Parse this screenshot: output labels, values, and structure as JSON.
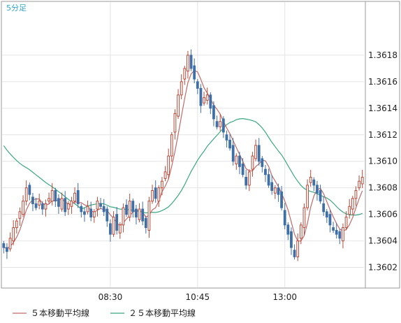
{
  "timeframe_label": "5分足",
  "colors": {
    "up": "#b84a3a",
    "down": "#3f6fa6",
    "ma5": "#c06a6a",
    "ma25": "#3aa882",
    "timeframe": "#2fa8cc",
    "grid": "#e4e4e4",
    "frame": "#999999"
  },
  "chart_data": {
    "type": "candlestick",
    "y_range": [
      1.36005,
      1.3622
    ],
    "y_ticks": [
      "1.3618",
      "1.3616",
      "1.3614",
      "1.3612",
      "1.3610",
      "1.3608",
      "1.3606",
      "1.3604",
      "1.3602"
    ],
    "x_ticks": [
      {
        "label": "08:30",
        "index": 33
      },
      {
        "label": "10:45",
        "index": 60
      },
      {
        "label": "13:00",
        "index": 87
      }
    ],
    "legend": [
      "５本移動平均線",
      "２５本移動平均線"
    ],
    "candle_closes": [
      1.36035,
      1.36032,
      1.36042,
      1.3605,
      1.36055,
      1.36062,
      1.3607,
      1.3608,
      1.36075,
      1.36068,
      1.36065,
      1.3607,
      1.36064,
      1.36068,
      1.36072,
      1.36078,
      1.3607,
      1.36066,
      1.36072,
      1.36062,
      1.36068,
      1.3607,
      1.36076,
      1.36068,
      1.36062,
      1.3606,
      1.36066,
      1.36058,
      1.36062,
      1.3607,
      1.36066,
      1.36062,
      1.36055,
      1.36045,
      1.36058,
      1.36048,
      1.36052,
      1.36065,
      1.3606,
      1.3607,
      1.36062,
      1.36058,
      1.36064,
      1.36055,
      1.3605,
      1.3607,
      1.36078,
      1.36072,
      1.3608,
      1.36085,
      1.36092,
      1.36104,
      1.3612,
      1.36136,
      1.3615,
      1.3616,
      1.3617,
      1.3618,
      1.3617,
      1.36162,
      1.36155,
      1.36142,
      1.36148,
      1.3615,
      1.3614,
      1.36132,
      1.36126,
      1.3613,
      1.36122,
      1.36116,
      1.3611,
      1.361,
      1.36104,
      1.36096,
      1.3609,
      1.36082,
      1.36092,
      1.36104,
      1.36112,
      1.361,
      1.36096,
      1.3609,
      1.36082,
      1.36078,
      1.3608,
      1.36075,
      1.36065,
      1.36052,
      1.36045,
      1.36035,
      1.36028,
      1.3604,
      1.36052,
      1.36065,
      1.36082,
      1.36088,
      1.36082,
      1.36076,
      1.3607,
      1.36062,
      1.36058,
      1.36052,
      1.36048,
      1.36045,
      1.36042,
      1.3605,
      1.36058,
      1.36066,
      1.36072,
      1.36078,
      1.36085,
      1.36088
    ]
  }
}
